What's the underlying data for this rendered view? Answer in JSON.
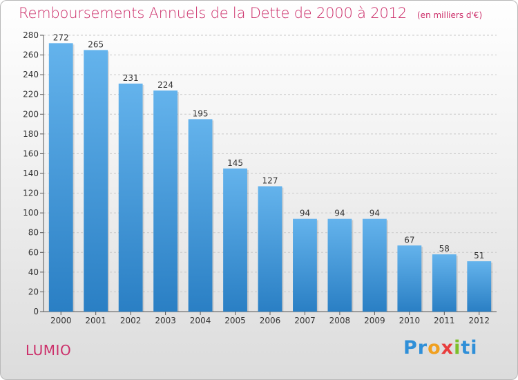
{
  "chart_data": {
    "type": "bar",
    "title": "Remboursements Annuels de la Dette de 2000 à 2012",
    "subtitle": "(en milliers d'€)",
    "categories": [
      "2000",
      "2001",
      "2002",
      "2003",
      "2004",
      "2005",
      "2006",
      "2007",
      "2008",
      "2009",
      "2010",
      "2011",
      "2012"
    ],
    "values": [
      272,
      265,
      231,
      224,
      195,
      145,
      127,
      94,
      94,
      94,
      67,
      58,
      51
    ],
    "ylim": [
      0,
      280
    ],
    "yticks": [
      0,
      20,
      40,
      60,
      80,
      100,
      120,
      140,
      160,
      180,
      200,
      220,
      240,
      260,
      280
    ],
    "grid": true,
    "xlabel": "",
    "ylabel": ""
  },
  "footer": {
    "town": "LUMIO"
  },
  "logo": {
    "parts": [
      "Pr",
      "o",
      "x",
      "i",
      "ti"
    ]
  },
  "colors": {
    "title": "#cc2f6a",
    "bar_top": "#64b3ec",
    "bar_bottom": "#2a7fc4"
  }
}
